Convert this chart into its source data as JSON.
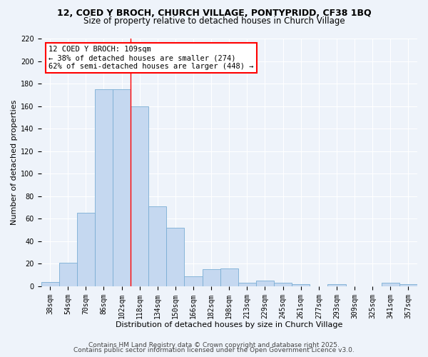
{
  "title_line1": "12, COED Y BROCH, CHURCH VILLAGE, PONTYPRIDD, CF38 1BQ",
  "title_line2": "Size of property relative to detached houses in Church Village",
  "xlabel": "Distribution of detached houses by size in Church Village",
  "ylabel": "Number of detached properties",
  "categories": [
    "38sqm",
    "54sqm",
    "70sqm",
    "86sqm",
    "102sqm",
    "118sqm",
    "134sqm",
    "150sqm",
    "166sqm",
    "182sqm",
    "198sqm",
    "213sqm",
    "229sqm",
    "245sqm",
    "261sqm",
    "277sqm",
    "293sqm",
    "309sqm",
    "325sqm",
    "341sqm",
    "357sqm"
  ],
  "values": [
    4,
    21,
    65,
    175,
    175,
    160,
    71,
    52,
    9,
    15,
    16,
    3,
    5,
    3,
    2,
    0,
    2,
    0,
    0,
    3,
    2
  ],
  "bar_color": "#c5d8f0",
  "bar_edge_color": "#7aadd4",
  "red_line_index": 4.5,
  "annotation_line1": "12 COED Y BROCH: 109sqm",
  "annotation_line2": "← 38% of detached houses are smaller (274)",
  "annotation_line3": "62% of semi-detached houses are larger (448) →",
  "annotation_box_color": "white",
  "annotation_box_edge": "red",
  "red_line_color": "red",
  "footer_line1": "Contains HM Land Registry data © Crown copyright and database right 2025.",
  "footer_line2": "Contains public sector information licensed under the Open Government Licence v3.0.",
  "ylim": [
    0,
    220
  ],
  "yticks": [
    0,
    20,
    40,
    60,
    80,
    100,
    120,
    140,
    160,
    180,
    200,
    220
  ],
  "background_color": "#eef3fa",
  "grid_color": "white",
  "title1_fontsize": 9,
  "title2_fontsize": 8.5,
  "axis_label_fontsize": 8,
  "tick_fontsize": 7,
  "annotation_fontsize": 7.5,
  "footer_fontsize": 6.5
}
